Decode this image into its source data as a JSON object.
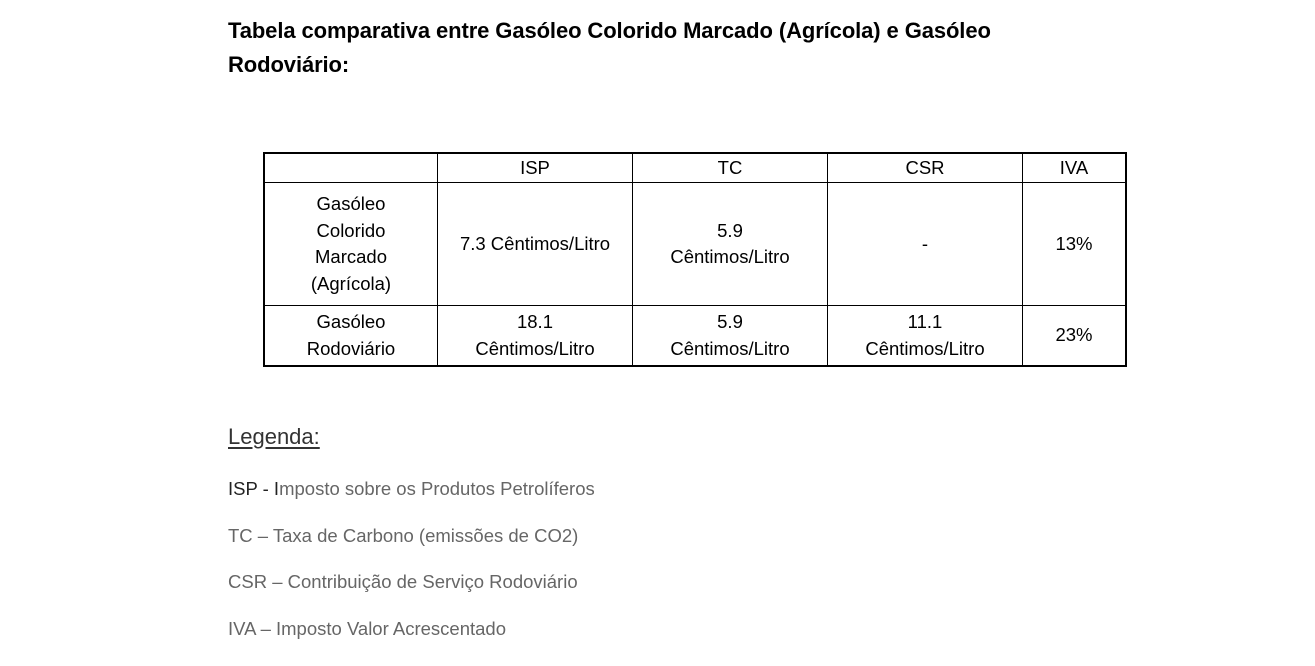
{
  "title": "Tabela comparativa entre Gasóleo Colorido Marcado (Agrícola) e Gasóleo Rodoviário:",
  "table": {
    "headers": [
      "",
      "ISP",
      "TC",
      "CSR",
      "IVA"
    ],
    "rows": [
      {
        "label_lines": [
          "Gasóleo",
          "Colorido",
          "Marcado",
          "(Agrícola)"
        ],
        "cells": [
          [
            "7.3 Cêntimos/Litro"
          ],
          [
            "5.9",
            "Cêntimos/Litro"
          ],
          [
            "-"
          ],
          [
            "13%"
          ]
        ]
      },
      {
        "label_lines": [
          "Gasóleo",
          "Rodoviário"
        ],
        "cells": [
          [
            "18.1",
            "Cêntimos/Litro"
          ],
          [
            "5.9",
            "Cêntimos/Litro"
          ],
          [
            "11.1",
            "Cêntimos/Litro"
          ],
          [
            "23%"
          ]
        ]
      }
    ]
  },
  "legend": {
    "title": "Legenda:",
    "items": [
      {
        "abbr": "ISP - I",
        "text": "mposto sobre os Produtos Petrolíferos"
      },
      {
        "abbr": "",
        "text": "TC – Taxa de Carbono (emissões de CO2)"
      },
      {
        "abbr": "",
        "text": "CSR – Contribuição de Serviço Rodoviário"
      },
      {
        "abbr": "",
        "text": "IVA – Imposto Valor Acrescentado"
      }
    ]
  }
}
